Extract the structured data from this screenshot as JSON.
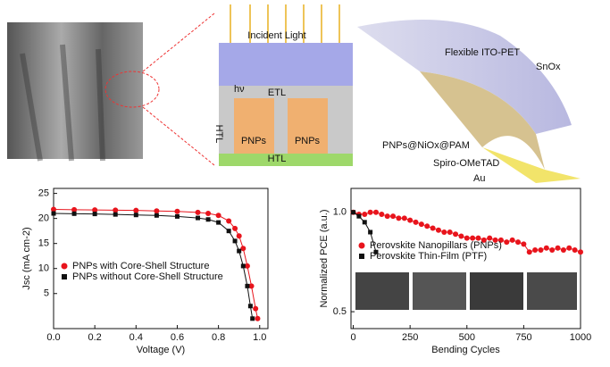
{
  "diagram": {
    "incident_light": "Incident Light",
    "etl": "ETL",
    "htl_side": "HTL",
    "htl": "HTL",
    "pnps_left": "PNPs",
    "pnps_right": "PNPs",
    "hv": "hν",
    "flexible": "Flexible ITO-PET",
    "sno": "SnOx",
    "pam": "PNPs@NiOx@PAM",
    "spiro": "Spiro-OMeTAD",
    "au": "Au"
  },
  "chart_data": [
    {
      "type": "line",
      "xlabel": "Voltage (V)",
      "ylabel": "Jsc (mA cm-2)",
      "xlim": [
        0,
        1.04
      ],
      "ylim": [
        -2,
        26
      ],
      "xticks": [
        {
          "value": 0,
          "label": "0.0"
        },
        {
          "value": 0.2,
          "label": "0.2"
        },
        {
          "value": 0.4,
          "label": "0.4"
        },
        {
          "value": 0.6,
          "label": "0.6"
        },
        {
          "value": 0.8,
          "label": "0.8"
        },
        {
          "value": 1,
          "label": "1.0"
        }
      ],
      "yticks": [
        5,
        10,
        15,
        20,
        25
      ],
      "legend": "lower-left",
      "series": [
        {
          "name": "PNPs with Core-Shell Structure",
          "color": "#e8141c",
          "marker": "circle",
          "x": [
            0,
            0.1,
            0.2,
            0.3,
            0.4,
            0.5,
            0.6,
            0.7,
            0.75,
            0.8,
            0.85,
            0.88,
            0.9,
            0.92,
            0.94,
            0.96,
            0.98,
            0.99
          ],
          "values": [
            21.8,
            21.75,
            21.7,
            21.65,
            21.6,
            21.5,
            21.4,
            21.2,
            21.0,
            20.6,
            19.5,
            18,
            16.5,
            14,
            10.5,
            6.5,
            2,
            0
          ]
        },
        {
          "name": "PNPs without Core-Shell Structure",
          "color": "#111111",
          "marker": "square",
          "x": [
            0,
            0.1,
            0.2,
            0.3,
            0.4,
            0.5,
            0.6,
            0.7,
            0.75,
            0.8,
            0.85,
            0.88,
            0.9,
            0.92,
            0.94,
            0.955,
            0.965
          ],
          "values": [
            21.0,
            20.95,
            20.9,
            20.8,
            20.7,
            20.6,
            20.4,
            20.1,
            19.8,
            19.2,
            17.5,
            15.5,
            13.5,
            10.5,
            6.5,
            2.5,
            0
          ]
        }
      ]
    },
    {
      "type": "line",
      "xlabel": "Bending Cycles",
      "ylabel": "Normalized PCE (a.u.)",
      "xlim": [
        -10,
        1000
      ],
      "ylim": [
        0.415,
        1.12
      ],
      "xticks": [
        0,
        250,
        500,
        750,
        1000
      ],
      "yticks": [
        0.5,
        {
          "value": 1,
          "label": "1.0"
        }
      ],
      "legend": "center-left",
      "series": [
        {
          "name": "Perovskite Nanopillars (PNPs)",
          "color": "#e8141c",
          "marker": "circle",
          "x": [
            0,
            25,
            50,
            75,
            100,
            125,
            150,
            175,
            200,
            225,
            250,
            275,
            300,
            325,
            350,
            375,
            400,
            425,
            450,
            475,
            500,
            525,
            550,
            575,
            600,
            625,
            650,
            675,
            700,
            725,
            750,
            775,
            800,
            825,
            850,
            875,
            900,
            925,
            950,
            975,
            1000
          ],
          "values": [
            1.0,
            0.99,
            0.99,
            1.0,
            1.0,
            0.99,
            0.98,
            0.98,
            0.97,
            0.97,
            0.96,
            0.95,
            0.94,
            0.93,
            0.92,
            0.91,
            0.9,
            0.9,
            0.89,
            0.88,
            0.87,
            0.87,
            0.87,
            0.86,
            0.87,
            0.86,
            0.86,
            0.85,
            0.86,
            0.85,
            0.84,
            0.8,
            0.81,
            0.81,
            0.82,
            0.81,
            0.82,
            0.81,
            0.82,
            0.81,
            0.8
          ]
        },
        {
          "name": "Perovskite Thin-Film (PTF)",
          "color": "#111111",
          "marker": "square",
          "x": [
            0,
            25,
            50,
            75,
            100
          ],
          "values": [
            1.0,
            0.98,
            0.95,
            0.9,
            0.8
          ]
        }
      ]
    }
  ]
}
